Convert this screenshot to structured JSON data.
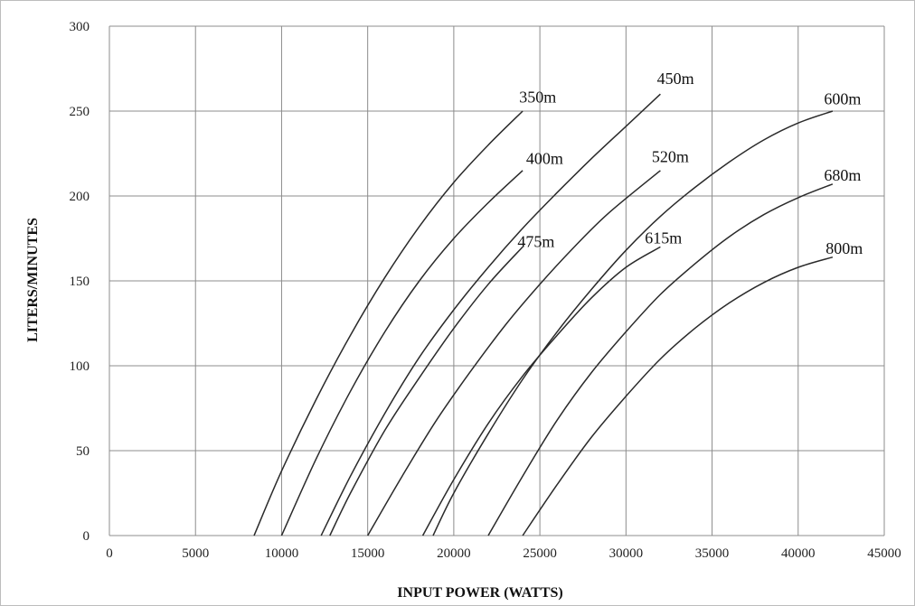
{
  "chart_data": {
    "type": "line",
    "title": "",
    "xlabel": "INPUT POWER (WATTS)",
    "ylabel": "LITERS/MINUTES",
    "xlim": [
      0,
      45000
    ],
    "ylim": [
      0,
      300
    ],
    "xticks": [
      0,
      5000,
      10000,
      15000,
      20000,
      25000,
      30000,
      35000,
      40000,
      45000
    ],
    "yticks": [
      0,
      50,
      100,
      150,
      200,
      250,
      300
    ],
    "grid": true,
    "line_color": "#2a2a2a",
    "series": [
      {
        "name": "350m",
        "x": [
          8400,
          10000,
          12000,
          14000,
          16000,
          18000,
          20000,
          22000,
          24000
        ],
        "y": [
          0,
          38,
          80,
          118,
          152,
          182,
          208,
          230,
          250
        ]
      },
      {
        "name": "400m",
        "x": [
          10000,
          12000,
          14000,
          16000,
          18000,
          20000,
          22000,
          24000
        ],
        "y": [
          0,
          45,
          85,
          120,
          150,
          175,
          196,
          215
        ]
      },
      {
        "name": "450m",
        "x": [
          12300,
          14000,
          16000,
          18000,
          20000,
          22000,
          24000,
          26000,
          28000,
          30000,
          32000
        ],
        "y": [
          0,
          35,
          72,
          105,
          133,
          158,
          181,
          202,
          222,
          241,
          260
        ]
      },
      {
        "name": "475m",
        "x": [
          12800,
          14000,
          16000,
          18000,
          20000,
          22000,
          24000
        ],
        "y": [
          0,
          25,
          62,
          93,
          122,
          148,
          170
        ]
      },
      {
        "name": "520m",
        "x": [
          15000,
          17000,
          19000,
          21000,
          23000,
          25000,
          27000,
          29000,
          32000
        ],
        "y": [
          0,
          35,
          68,
          97,
          124,
          148,
          170,
          190,
          215
        ]
      },
      {
        "name": "615m",
        "x": [
          18200,
          20000,
          22000,
          24000,
          26000,
          28000,
          30000,
          32000
        ],
        "y": [
          0,
          33,
          66,
          94,
          118,
          140,
          158,
          170
        ]
      },
      {
        "name": "600m",
        "x": [
          18800,
          20000,
          22000,
          24000,
          26000,
          28000,
          30000,
          32000,
          34000,
          36000,
          38000,
          40000,
          42000
        ],
        "y": [
          0,
          25,
          60,
          92,
          120,
          145,
          168,
          188,
          205,
          220,
          233,
          243,
          250
        ]
      },
      {
        "name": "680m",
        "x": [
          22000,
          24000,
          26000,
          28000,
          30000,
          32000,
          34000,
          36000,
          38000,
          40000,
          42000
        ],
        "y": [
          0,
          35,
          68,
          96,
          120,
          142,
          160,
          176,
          189,
          199,
          207
        ]
      },
      {
        "name": "800m",
        "x": [
          24000,
          26000,
          28000,
          30000,
          32000,
          34000,
          36000,
          38000,
          40000,
          42000
        ],
        "y": [
          0,
          30,
          58,
          82,
          104,
          122,
          137,
          149,
          158,
          164
        ]
      }
    ],
    "series_labels_at": [
      {
        "name": "350m",
        "x": 23800,
        "y": 255
      },
      {
        "name": "400m",
        "x": 24200,
        "y": 219
      },
      {
        "name": "450m",
        "x": 31800,
        "y": 266
      },
      {
        "name": "475m",
        "x": 23700,
        "y": 170
      },
      {
        "name": "520m",
        "x": 31500,
        "y": 220
      },
      {
        "name": "615m",
        "x": 31100,
        "y": 172
      },
      {
        "name": "600m",
        "x": 41500,
        "y": 254
      },
      {
        "name": "680m",
        "x": 41500,
        "y": 209
      },
      {
        "name": "800m",
        "x": 41600,
        "y": 166
      }
    ]
  }
}
